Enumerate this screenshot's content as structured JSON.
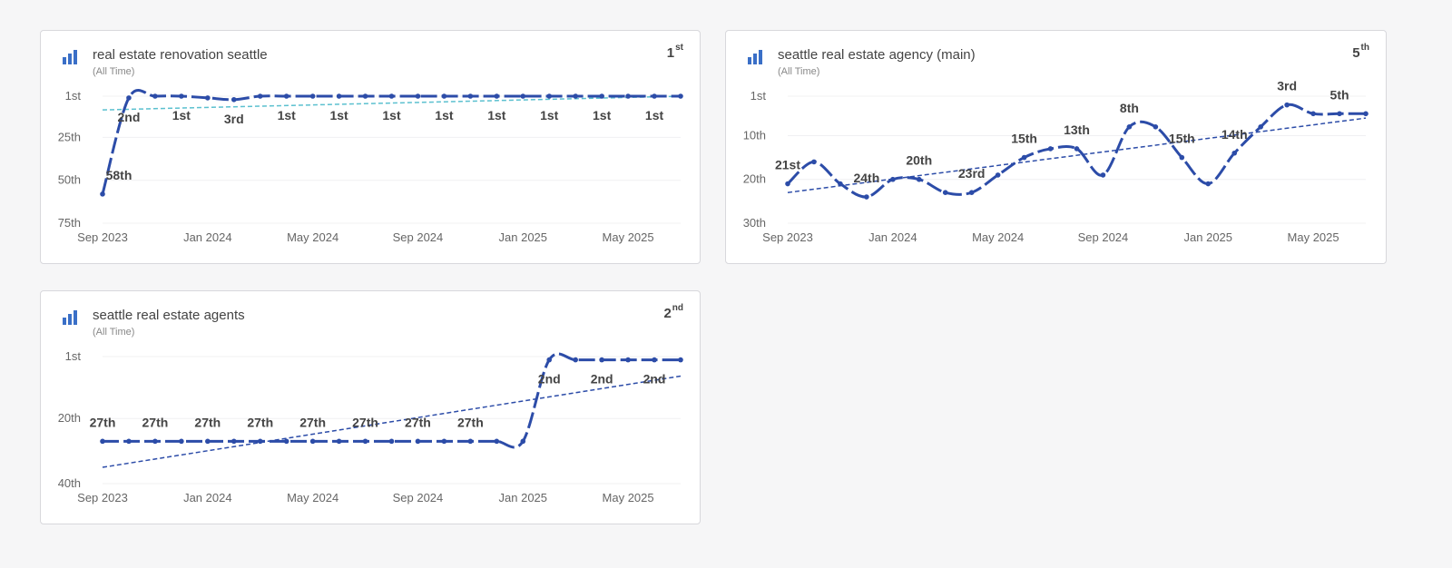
{
  "colors": {
    "line": "#2c4ca8",
    "trend": "#2c4ca8",
    "trend_alt": "#5bc0cf",
    "icon": "#3a6fc7"
  },
  "cards": [
    {
      "title": "real estate renovation seattle",
      "subtitle": "(All Time)",
      "rank_num": "1",
      "rank_suffix": "st",
      "icon": "bar-chart-icon"
    },
    {
      "title": "seattle real estate agency (main)",
      "subtitle": "(All Time)",
      "rank_num": "5",
      "rank_suffix": "th",
      "icon": "bar-chart-icon"
    },
    {
      "title": "seattle real estate agents",
      "subtitle": "(All Time)",
      "rank_num": "2",
      "rank_suffix": "nd",
      "icon": "bar-chart-icon"
    }
  ],
  "chart_data": [
    {
      "type": "line",
      "title": "real estate renovation seattle",
      "x_ticks": [
        "Sep 2023",
        "Jan 2024",
        "May 2024",
        "Sep 2024",
        "Jan 2025",
        "May 2025"
      ],
      "x_range": [
        "2023-09",
        "2025-07"
      ],
      "y_ticks": [
        "1st",
        "25th",
        "50th",
        "75th"
      ],
      "y_range": [
        1,
        75
      ],
      "y_inverted": true,
      "series": [
        {
          "x": [
            "2023-09",
            "2023-10",
            "2023-11",
            "2023-12",
            "2024-01",
            "2024-02",
            "2024-03",
            "2024-04",
            "2024-05",
            "2024-06",
            "2024-07",
            "2024-08",
            "2024-09",
            "2024-10",
            "2024-11",
            "2024-12",
            "2025-01",
            "2025-02",
            "2025-03",
            "2025-04",
            "2025-05",
            "2025-06",
            "2025-07"
          ],
          "y": [
            58,
            2,
            1,
            1,
            2,
            3,
            1,
            1,
            1,
            1,
            1,
            1,
            1,
            1,
            1,
            1,
            1,
            1,
            1,
            1,
            1,
            1,
            1
          ],
          "labels": [
            "58th",
            "2nd",
            "",
            "1st",
            "",
            "3rd",
            "",
            "1st",
            "",
            "1st",
            "",
            "1st",
            "",
            "1st",
            "",
            "1st",
            "",
            "1st",
            "",
            "1st",
            "",
            "1st",
            ""
          ]
        }
      ],
      "trend": {
        "y_start": 9,
        "y_end": 1,
        "style": "alt"
      }
    },
    {
      "type": "line",
      "title": "seattle real estate agency (main)",
      "x_ticks": [
        "Sep 2023",
        "Jan 2024",
        "May 2024",
        "Sep 2024",
        "Jan 2025",
        "May 2025"
      ],
      "x_range": [
        "2023-09",
        "2025-07"
      ],
      "y_ticks": [
        "1st",
        "10th",
        "20th",
        "30th"
      ],
      "y_range": [
        1,
        30
      ],
      "y_inverted": true,
      "series": [
        {
          "x": [
            "2023-09",
            "2023-10",
            "2023-11",
            "2023-12",
            "2024-01",
            "2024-02",
            "2024-03",
            "2024-04",
            "2024-05",
            "2024-06",
            "2024-07",
            "2024-08",
            "2024-09",
            "2024-10",
            "2024-11",
            "2024-12",
            "2025-01",
            "2025-02",
            "2025-03",
            "2025-04",
            "2025-05",
            "2025-06",
            "2025-07"
          ],
          "y": [
            21,
            16,
            21,
            24,
            20,
            20,
            23,
            23,
            19,
            15,
            13,
            13,
            19,
            8,
            8,
            15,
            21,
            14,
            8,
            3,
            5,
            5,
            5
          ],
          "labels": [
            "21st",
            "",
            "",
            "24th",
            "",
            "20th",
            "",
            "23rd",
            "",
            "15th",
            "",
            "13th",
            "",
            "8th",
            "",
            "15th",
            "",
            "14th",
            "",
            "3rd",
            "",
            "5th",
            ""
          ]
        }
      ],
      "trend": {
        "y_start": 23,
        "y_end": 6,
        "style": "main"
      }
    },
    {
      "type": "line",
      "title": "seattle real estate agents",
      "x_ticks": [
        "Sep 2023",
        "Jan 2024",
        "May 2024",
        "Sep 2024",
        "Jan 2025",
        "May 2025"
      ],
      "x_range": [
        "2023-09",
        "2025-07"
      ],
      "y_ticks": [
        "1st",
        "20th",
        "40th"
      ],
      "y_range": [
        1,
        40
      ],
      "y_inverted": true,
      "series": [
        {
          "x": [
            "2023-09",
            "2023-10",
            "2023-11",
            "2023-12",
            "2024-01",
            "2024-02",
            "2024-03",
            "2024-04",
            "2024-05",
            "2024-06",
            "2024-07",
            "2024-08",
            "2024-09",
            "2024-10",
            "2024-11",
            "2024-12",
            "2025-01",
            "2025-02",
            "2025-03",
            "2025-04",
            "2025-05",
            "2025-06",
            "2025-07"
          ],
          "y": [
            27,
            27,
            27,
            27,
            27,
            27,
            27,
            27,
            27,
            27,
            27,
            27,
            27,
            27,
            27,
            27,
            27,
            2,
            2,
            2,
            2,
            2,
            2
          ],
          "labels": [
            "27th",
            "",
            "27th",
            "",
            "27th",
            "",
            "27th",
            "",
            "27th",
            "",
            "27th",
            "",
            "27th",
            "",
            "27th",
            "",
            "",
            "2nd",
            "",
            "2nd",
            "",
            "2nd",
            ""
          ]
        }
      ],
      "trend": {
        "y_start": 35,
        "y_end": 7,
        "style": "main"
      }
    }
  ]
}
